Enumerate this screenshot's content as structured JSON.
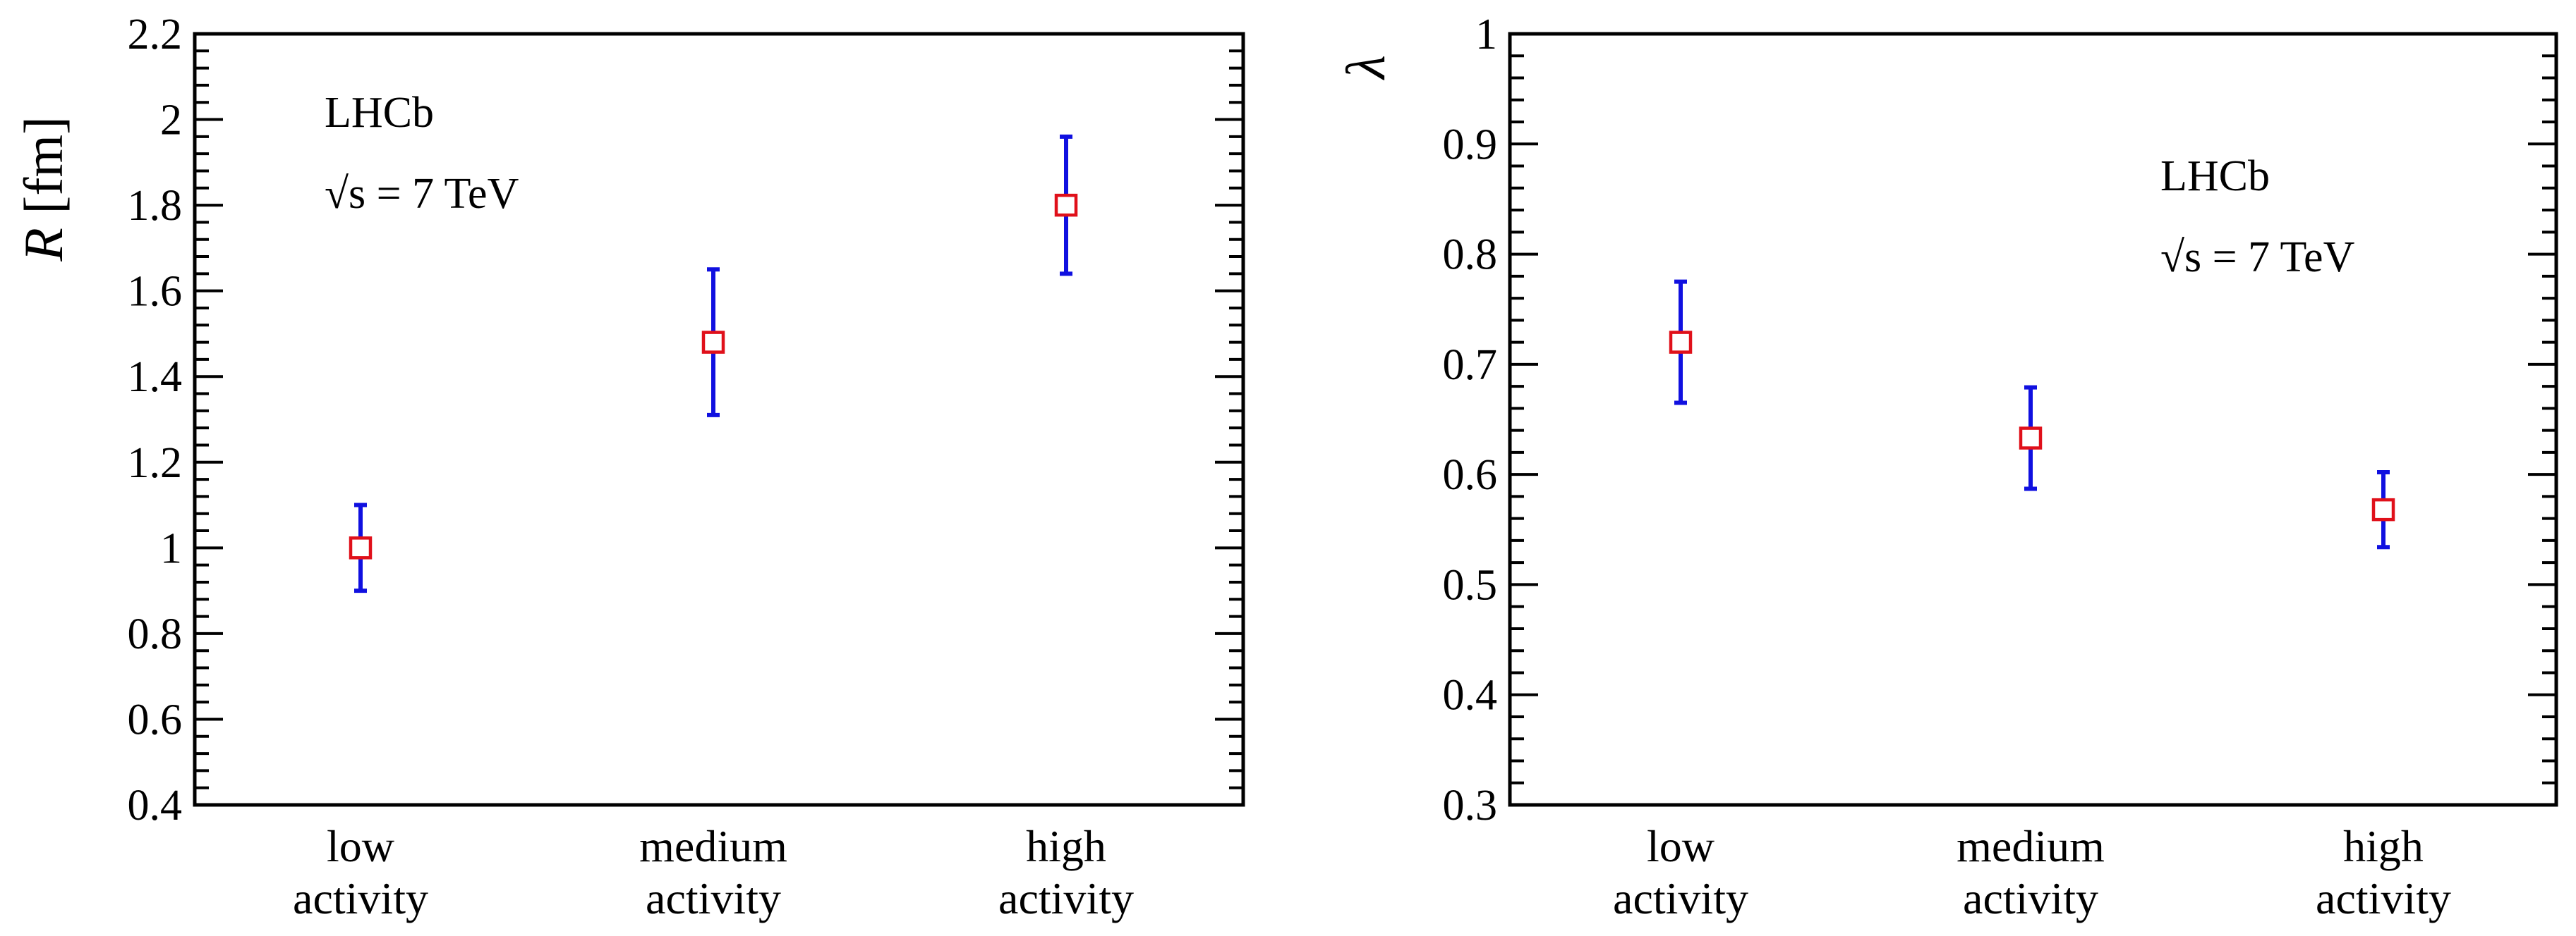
{
  "chart_data": [
    {
      "type": "scatter",
      "categories": [
        "low\nactivity",
        "medium\nactivity",
        "high\nactivity"
      ],
      "category_lines": [
        [
          "low",
          "activity"
        ],
        [
          "medium",
          "activity"
        ],
        [
          "high",
          "activity"
        ]
      ],
      "values": [
        1.0,
        1.48,
        1.8
      ],
      "errors": [
        0.1,
        0.17,
        0.16
      ],
      "ylabel_italic": "R",
      "ylabel_rest": "[fm]",
      "ylim": [
        0.4,
        2.2
      ],
      "yticks": [
        0.4,
        0.6,
        0.8,
        1,
        1.2,
        1.4,
        1.6,
        1.8,
        2,
        2.2
      ],
      "ytick_labels": [
        "0.4",
        "0.6",
        "0.8",
        "1",
        "1.2",
        "1.4",
        "1.6",
        "1.8",
        "2",
        "2.2"
      ],
      "annotations": {
        "experiment": "LHCb",
        "sqrt": "√s",
        "energy": " = 7 TeV"
      },
      "legend_position": "top-left"
    },
    {
      "type": "scatter",
      "categories": [
        "low\nactivity",
        "medium\nactivity",
        "high\nactivity"
      ],
      "category_lines": [
        [
          "low",
          "activity"
        ],
        [
          "medium",
          "activity"
        ],
        [
          "high",
          "activity"
        ]
      ],
      "values": [
        0.72,
        0.633,
        0.568
      ],
      "errors": [
        0.055,
        0.046,
        0.034
      ],
      "ylabel_italic": "λ",
      "ylabel_rest": "",
      "ylim": [
        0.3,
        1.0
      ],
      "yticks": [
        0.3,
        0.4,
        0.5,
        0.6,
        0.7,
        0.8,
        0.9,
        1
      ],
      "ytick_labels": [
        "0.3",
        "0.4",
        "0.5",
        "0.6",
        "0.7",
        "0.8",
        "0.9",
        "1"
      ],
      "annotations": {
        "experiment": "LHCb",
        "sqrt": "√s",
        "energy": " = 7 TeV"
      },
      "legend_position": "top-right"
    }
  ],
  "colors": {
    "errorbar": "#1010e0",
    "marker": "#e0101a",
    "axis": "#000000"
  }
}
